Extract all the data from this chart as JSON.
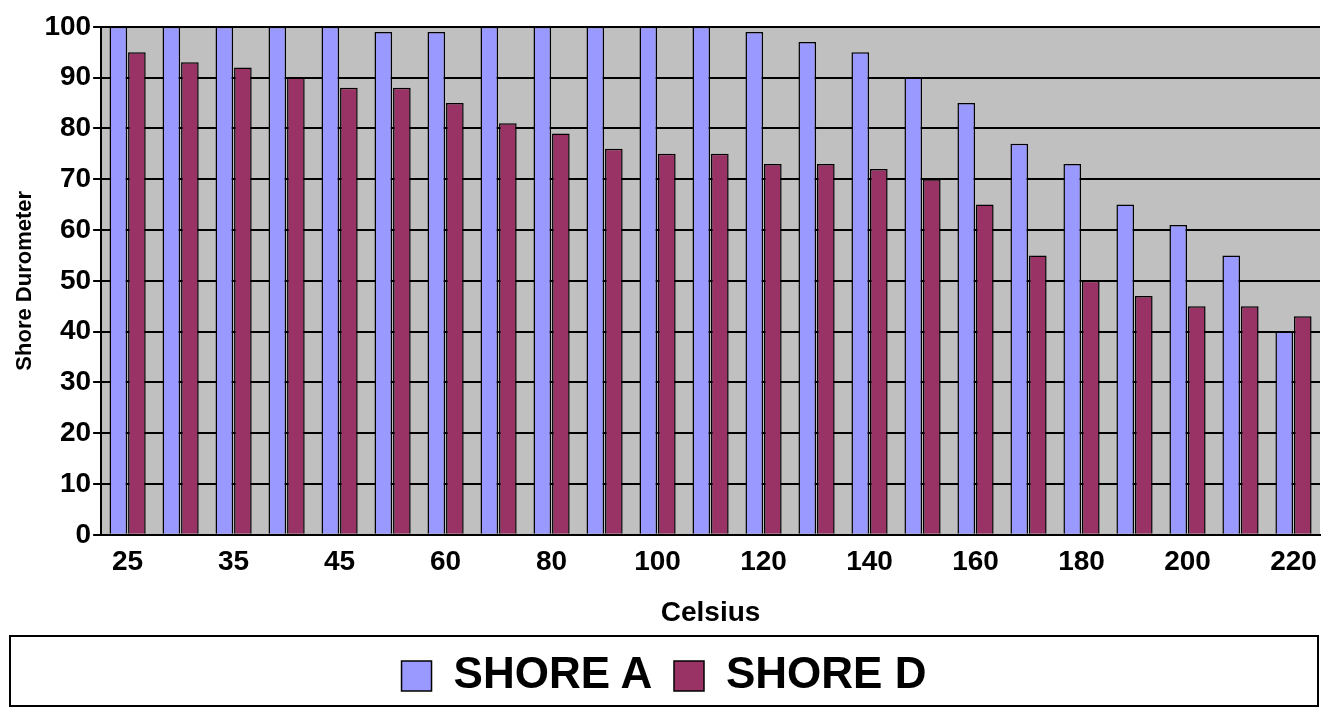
{
  "chart_data": {
    "type": "bar",
    "xlabel": "Celsius",
    "ylabel": "Shore Durometer",
    "categories": [
      "25",
      null,
      "35",
      null,
      "45",
      null,
      "60",
      null,
      "80",
      null,
      "100",
      null,
      "120",
      null,
      "140",
      null,
      "160",
      null,
      "180",
      null,
      "200",
      null,
      "220"
    ],
    "series": [
      {
        "name": "SHORE A",
        "color": "#9999ff",
        "values": [
          100,
          100,
          100,
          100,
          100,
          99,
          99,
          100,
          100,
          100,
          100,
          100,
          99,
          97,
          95,
          90,
          85,
          77,
          73,
          65,
          61,
          55,
          40
        ]
      },
      {
        "name": "SHORE D",
        "color": "#993366",
        "values": [
          95,
          93,
          92,
          90,
          88,
          88,
          85,
          81,
          79,
          76,
          75,
          75,
          73,
          73,
          72,
          70,
          65,
          55,
          50,
          47,
          45,
          45,
          43
        ]
      }
    ],
    "ylim": [
      0,
      100
    ],
    "yticks": [
      0,
      10,
      20,
      30,
      40,
      50,
      60,
      70,
      80,
      90,
      100
    ],
    "grid": "y",
    "legend": "bottom"
  }
}
